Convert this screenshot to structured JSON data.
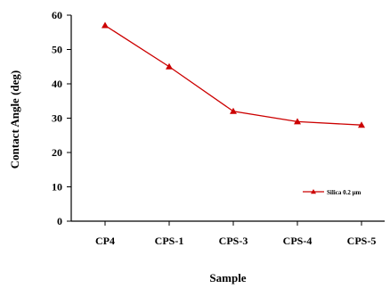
{
  "chart_data": {
    "type": "line",
    "categories": [
      "CP4",
      "CPS-1",
      "CPS-3",
      "CPS-4",
      "CPS-5"
    ],
    "series": [
      {
        "name": "Silica 0.2 μm",
        "values": [
          57,
          45,
          32,
          29,
          28
        ],
        "color": "#cc0000",
        "marker": "triangle"
      }
    ],
    "xlabel": "Sample",
    "ylabel": "Contact Angle (deg)",
    "ylim": [
      0,
      60
    ],
    "yticks": [
      0,
      10,
      20,
      30,
      40,
      50,
      60
    ],
    "grid": false,
    "legend_position": "right-middle"
  }
}
